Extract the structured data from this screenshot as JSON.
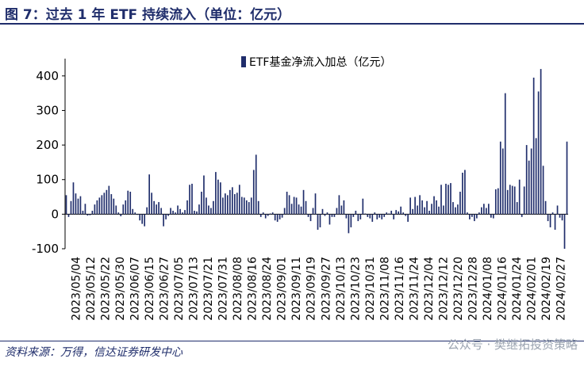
{
  "title": "图 7：过去 1 年 ETF 持续流入（单位：亿元）",
  "source": "资料来源：万得，信达证券研发中心",
  "watermark": "公众号 · 樊继拓投资策略",
  "colors": {
    "bar": "#1f2d6b",
    "text": "#1f2d6b",
    "axis": "#000000"
  },
  "chart_data": {
    "type": "bar",
    "series": [
      {
        "name": "ETF基金净流入加总（亿元）"
      }
    ],
    "ylim": [
      -100,
      450
    ],
    "yticks": [
      -100,
      0,
      100,
      200,
      300,
      400
    ],
    "xtick_labels": [
      "2023/05/04",
      "2023/05/12",
      "2023/05/22",
      "2023/05/30",
      "2023/06/07",
      "2023/06/15",
      "2023/06/27",
      "2023/07/05",
      "2023/07/13",
      "2023/07/21",
      "2023/07/31",
      "2023/08/08",
      "2023/08/16",
      "2023/08/24",
      "2023/09/01",
      "2023/09/11",
      "2023/09/19",
      "2023/09/27",
      "2023/10/13",
      "2023/10/23",
      "2023/10/31",
      "2023/11/08",
      "2023/11/16",
      "2023/11/24",
      "2023/12/04",
      "2023/12/12",
      "2023/12/20",
      "2023/12/28",
      "2024/01/08",
      "2024/01/16",
      "2024/01/24",
      "2024/02/01",
      "2024/02/19",
      "2024/02/27"
    ],
    "values": [
      55,
      -8,
      38,
      92,
      60,
      45,
      52,
      10,
      30,
      -4,
      -3,
      10,
      28,
      40,
      48,
      55,
      62,
      70,
      82,
      58,
      45,
      25,
      5,
      -6,
      28,
      40,
      68,
      65,
      15,
      5,
      -2,
      -18,
      -28,
      -35,
      20,
      115,
      62,
      38,
      28,
      35,
      18,
      -35,
      -15,
      -5,
      18,
      10,
      5,
      25,
      15,
      5,
      12,
      40,
      85,
      88,
      10,
      8,
      28,
      65,
      112,
      48,
      25,
      18,
      38,
      122,
      100,
      92,
      48,
      60,
      55,
      70,
      78,
      58,
      62,
      85,
      50,
      48,
      40,
      35,
      48,
      128,
      172,
      38,
      -8,
      5,
      -12,
      -5,
      2,
      5,
      -18,
      -22,
      -15,
      -10,
      18,
      65,
      55,
      30,
      50,
      48,
      28,
      22,
      70,
      38,
      -8,
      -20,
      18,
      60,
      -45,
      -38,
      15,
      -5,
      5,
      -30,
      -8,
      -8,
      18,
      55,
      25,
      40,
      -12,
      -55,
      -38,
      -8,
      10,
      -20,
      -15,
      45,
      2,
      -8,
      -12,
      -22,
      5,
      -15,
      -10,
      -15,
      -8,
      5,
      2,
      10,
      -15,
      12,
      8,
      22,
      5,
      -5,
      -22,
      48,
      15,
      50,
      25,
      55,
      40,
      20,
      38,
      10,
      30,
      52,
      40,
      22,
      85,
      25,
      88,
      85,
      90,
      35,
      20,
      28,
      65,
      120,
      128,
      5,
      -15,
      -8,
      -20,
      -12,
      5,
      20,
      30,
      18,
      30,
      -10,
      -12,
      72,
      75,
      210,
      190,
      350,
      70,
      85,
      82,
      80,
      35,
      100,
      -8,
      80,
      200,
      155,
      190,
      395,
      220,
      355,
      420,
      140,
      38,
      -20,
      -38,
      5,
      -45,
      25,
      -10,
      -18,
      -100,
      210
    ]
  }
}
